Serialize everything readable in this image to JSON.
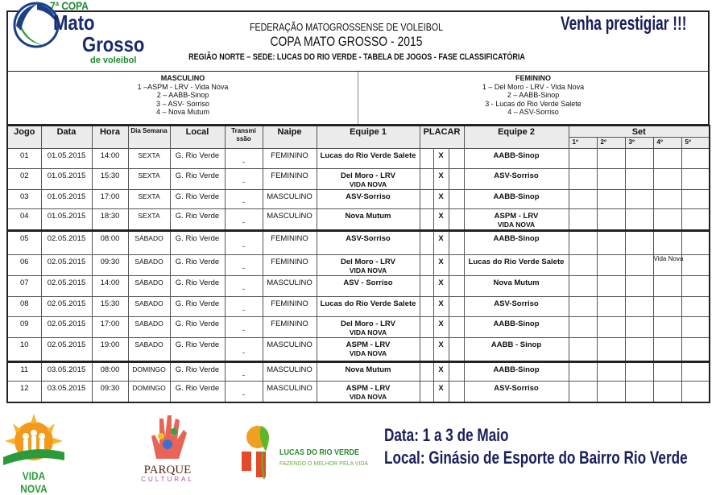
{
  "header": {
    "logo_top": "7ª COPA",
    "logo_line1": "Mato",
    "logo_line2": "Grosso",
    "logo_line3": "de voleibol",
    "federation": "FEDERAÇÃO MATOGROSSENSE DE VOLEIBOL",
    "title": "COPA MATO GROSSO - 2015",
    "subtitle": "REGIÃO NORTE – SEDE: LUCAS DO RIO VERDE - TABELA DE JOGOS - FASE CLASSIFICATÓRIA",
    "slogan": "Venha prestigiar !!!"
  },
  "teams": {
    "masculino": {
      "title": "MASCULINO",
      "items": [
        "1 –ASPM - LRV - Vida Nova",
        "2 – AABB-Sinop",
        "3 – ASV- Sorriso",
        "4 – Nova Mutum"
      ]
    },
    "feminino": {
      "title": "FEMININO",
      "items": [
        "1 – Del Moro - LRV - Vida Nova",
        "2 – AABB-Sinop",
        "3 - Lucas do Rio Verde Salete",
        "4 – ASV-Sorriso"
      ]
    }
  },
  "columns": {
    "jogo": "Jogo",
    "data": "Data",
    "hora": "Hora",
    "dia": "Dia Semana",
    "local": "Local",
    "transmissao": "Transmi ssão",
    "naipe": "Naipe",
    "equipe1": "Equipe 1",
    "placar": "PLACAR",
    "equipe2": "Equipe 2",
    "set": "Set",
    "sets": [
      "1º",
      "2º",
      "3º",
      "4º",
      "5º"
    ]
  },
  "games": [
    {
      "jogo": "01",
      "data": "01.05.2015",
      "hora": "14:00",
      "dia": "SEXTA",
      "local": "G. Rio Verde",
      "tx": "-",
      "naipe": "FEMININO",
      "e1": "Lucas do Rio Verde Salete",
      "e1b": "",
      "x": "X",
      "e2": "AABB-Sinop",
      "e2b": ""
    },
    {
      "jogo": "02",
      "data": "01.05.2015",
      "hora": "15:30",
      "dia": "SEXTA",
      "local": "G. Rio Verde",
      "tx": "-",
      "naipe": "FEMININO",
      "e1": "Del Moro - LRV",
      "e1b": "VIDA NOVA",
      "x": "X",
      "e2": "ASV-Sorriso",
      "e2b": ""
    },
    {
      "jogo": "03",
      "data": "01.05.2015",
      "hora": "17:00",
      "dia": "SEXTA",
      "local": "G. Rio Verde",
      "tx": "-",
      "naipe": "MASCULINO",
      "e1": "ASV-Sorriso",
      "e1b": "",
      "x": "X",
      "e2": "AABB-Sinop",
      "e2b": ""
    },
    {
      "jogo": "04",
      "data": "01.05.2015",
      "hora": "18:30",
      "dia": "SEXTA",
      "local": "G. Rio Verde",
      "tx": "-",
      "naipe": "MASCULINO",
      "e1": "Nova Mutum",
      "e1b": "",
      "x": "X",
      "e2": "ASPM - LRV",
      "e2b": "VIDA NOVA"
    },
    {
      "jogo": "05",
      "data": "02.05.2015",
      "hora": "08:00",
      "dia": "SÁBADO",
      "local": "G. Rio Verde",
      "tx": "-",
      "naipe": "FEMININO",
      "e1": "ASV-Sorriso",
      "e1b": "",
      "x": "X",
      "e2": "AABB-Sinop",
      "e2b": "",
      "thick": true
    },
    {
      "jogo": "06",
      "data": "02.05.2015",
      "hora": "09:30",
      "dia": "SÁBADO",
      "local": "G. Rio Verde",
      "tx": "-",
      "naipe": "FEMININO",
      "e1": "Del Moro - LRV",
      "e1b": "VIDA NOVA",
      "x": "X",
      "e2": "Lucas do Rio Verde Salete",
      "e2b": "",
      "note": "Vida Nova"
    },
    {
      "jogo": "07",
      "data": "02.05.2015",
      "hora": "14:00",
      "dia": "SÁBADO",
      "local": "G. Rio Verde",
      "tx": "-",
      "naipe": "MASCULINO",
      "e1": "ASV - Sorriso",
      "e1b": "",
      "x": "X",
      "e2": "Nova Mutum",
      "e2b": ""
    },
    {
      "jogo": "08",
      "data": "02.05.2015",
      "hora": "15:30",
      "dia": "SABADO",
      "local": "G. Rio Verde",
      "tx": "-",
      "naipe": "FEMININO",
      "e1": "Lucas do Rio Verde Salete",
      "e1b": "",
      "x": "X",
      "e2": "ASV-Sorriso",
      "e2b": ""
    },
    {
      "jogo": "09",
      "data": "02.05.2015",
      "hora": "17:00",
      "dia": "SABADO",
      "local": "G. Rio Verde",
      "tx": "-",
      "naipe": "FEMININO",
      "e1": "Del Moro - LRV",
      "e1b": "VIDA NOVA",
      "x": "X",
      "e2": "AABB-Sinop",
      "e2b": ""
    },
    {
      "jogo": "10",
      "data": "02.05.2015",
      "hora": "19:00",
      "dia": "SABADO",
      "local": "G. Rio Verde",
      "tx": "-",
      "naipe": "MASCULINO",
      "e1": "ASPM - LRV",
      "e1b": "VIDA NOVA",
      "x": "X",
      "e2": "AABB - Sinop",
      "e2b": ""
    },
    {
      "jogo": "11",
      "data": "03.05.2015",
      "hora": "08:00",
      "dia": "DOMINGO",
      "local": "G. Rio Verde",
      "tx": "-",
      "naipe": "MASCULINO",
      "e1": "Nova Mutum",
      "e1b": "",
      "x": "X",
      "e2": "AABB-Sinop",
      "e2b": "",
      "thick": true
    },
    {
      "jogo": "12",
      "data": "03.05.2015",
      "hora": "09:30",
      "dia": "DOMINGO",
      "local": "G. Rio Verde",
      "tx": "-",
      "naipe": "MASCULINO",
      "e1": "ASPM - LRV",
      "e1b": "VIDA NOVA",
      "x": "X",
      "e2": "ASV-Sorriso",
      "e2b": ""
    }
  ],
  "footer": {
    "vida_nova": "VIDA NOVA",
    "parque": "PARQUE",
    "cultural": "CULTURAL",
    "lucas": "LUCAS DO RIO VERDE",
    "lucas_slogan": "FAZENDO O MELHOR PELA VIDA",
    "data": "Data: 1 a 3 de Maio",
    "local": "Local: Ginásio de Esporte do Bairro Rio Verde"
  },
  "colors": {
    "navy": "#1a1f5c",
    "green": "#2e8b2e",
    "orange": "#f08a1c"
  }
}
